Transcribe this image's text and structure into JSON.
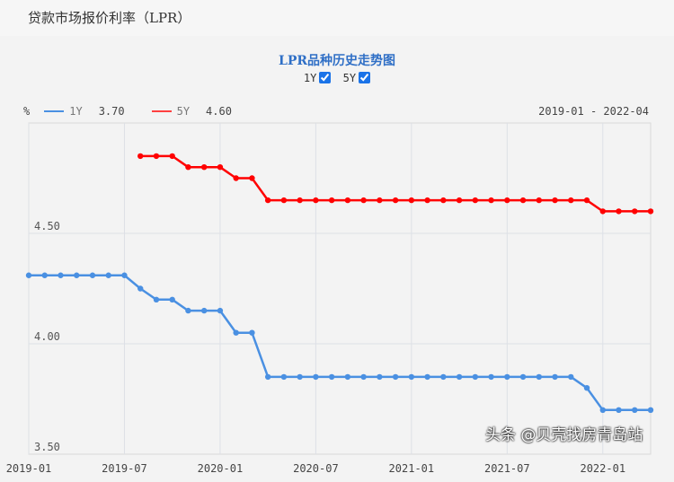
{
  "header": {
    "title": "贷款市场报价利率（LPR）"
  },
  "toggles": [
    {
      "label": "1Y",
      "checked": true
    },
    {
      "label": "5Y",
      "checked": true
    }
  ],
  "legend": {
    "unit": "%",
    "items": [
      {
        "name": "1Y",
        "value": "3.70",
        "color": "#4a90e2"
      },
      {
        "name": "5Y",
        "value": "4.60",
        "color": "#ff0000"
      }
    ],
    "range": "2019-01 - 2022-04"
  },
  "watermark": "头条 @贝壳找房青岛站",
  "chart_data": {
    "type": "line",
    "title": "LPR品种历史走势图",
    "ylabel": "%",
    "ylim": [
      3.5,
      5.0
    ],
    "yticks": [
      "3.50",
      "4.00",
      "4.50"
    ],
    "ytick_values": [
      3.5,
      4.0,
      4.5
    ],
    "xticks": [
      "2019-01",
      "2019-07",
      "2020-01",
      "2020-07",
      "2021-01",
      "2021-07",
      "2022-01"
    ],
    "xtick_index": [
      0,
      6,
      12,
      18,
      24,
      30,
      36
    ],
    "x_count": 40,
    "grid": true,
    "legend_position": "top-left",
    "series": [
      {
        "name": "1Y",
        "color": "#4a90e2",
        "start": 0,
        "values": [
          4.31,
          4.31,
          4.31,
          4.31,
          4.31,
          4.31,
          4.31,
          4.25,
          4.2,
          4.2,
          4.15,
          4.15,
          4.15,
          4.05,
          4.05,
          3.85,
          3.85,
          3.85,
          3.85,
          3.85,
          3.85,
          3.85,
          3.85,
          3.85,
          3.85,
          3.85,
          3.85,
          3.85,
          3.85,
          3.85,
          3.85,
          3.85,
          3.85,
          3.85,
          3.85,
          3.8,
          3.7,
          3.7,
          3.7,
          3.7
        ]
      },
      {
        "name": "5Y",
        "color": "#ff0000",
        "start": 7,
        "values": [
          4.85,
          4.85,
          4.85,
          4.8,
          4.8,
          4.8,
          4.75,
          4.75,
          4.65,
          4.65,
          4.65,
          4.65,
          4.65,
          4.65,
          4.65,
          4.65,
          4.65,
          4.65,
          4.65,
          4.65,
          4.65,
          4.65,
          4.65,
          4.65,
          4.65,
          4.65,
          4.65,
          4.65,
          4.65,
          4.6,
          4.6,
          4.6,
          4.6
        ]
      }
    ]
  }
}
